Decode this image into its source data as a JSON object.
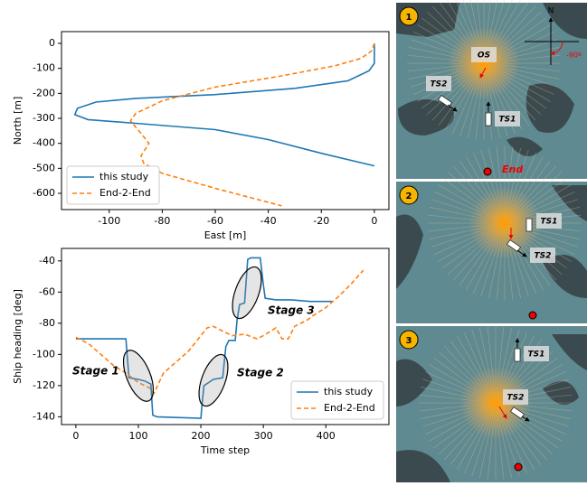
{
  "chart_data": [
    {
      "type": "line",
      "xlabel": "East [m]",
      "ylabel": "North [m]",
      "xlim": [
        -118,
        5.5
      ],
      "ylim": [
        -665,
        47
      ],
      "xticks": [
        -100,
        -80,
        -60,
        -40,
        -20,
        0
      ],
      "yticks": [
        0,
        -100,
        -200,
        -300,
        -400,
        -500,
        -600
      ],
      "legend": "lower left",
      "series": [
        {
          "name": "this study",
          "color": "#1f77b4",
          "dash": false,
          "x": [
            0,
            0,
            -2,
            -10,
            -30,
            -60,
            -90,
            -105,
            -112,
            -113,
            -108,
            -90,
            -60,
            -40,
            -20,
            0
          ],
          "values": [
            0,
            -80,
            -110,
            -150,
            -180,
            -205,
            -220,
            -235,
            -260,
            -285,
            -305,
            -320,
            -345,
            -385,
            -440,
            -490
          ]
        },
        {
          "name": "End-2-End",
          "color": "#ff7f0e",
          "dash": true,
          "x": [
            0,
            -1,
            -5,
            -15,
            -35,
            -60,
            -80,
            -90,
            -92,
            -88,
            -85,
            -88,
            -87,
            -80,
            -60,
            -35
          ],
          "values": [
            0,
            -30,
            -60,
            -90,
            -130,
            -175,
            -230,
            -280,
            -310,
            -360,
            -400,
            -450,
            -480,
            -520,
            -580,
            -650
          ]
        }
      ]
    },
    {
      "type": "line",
      "xlabel": "Time step",
      "ylabel": "Ship heading [deg]",
      "xlim": [
        -23,
        501
      ],
      "ylim": [
        -145,
        -32
      ],
      "xticks": [
        0,
        100,
        200,
        300,
        400
      ],
      "yticks": [
        -40,
        -60,
        -80,
        -100,
        -120,
        -140
      ],
      "legend": "lower right",
      "annotations": [
        "Stage 1",
        "Stage 2",
        "Stage 3"
      ],
      "series": [
        {
          "name": "this study",
          "color": "#1f77b4",
          "dash": false,
          "x": [
            0,
            80,
            82,
            85,
            100,
            110,
            120,
            123,
            130,
            200,
            202,
            205,
            220,
            235,
            240,
            245,
            255,
            258,
            262,
            270,
            275,
            280,
            295,
            300,
            303,
            320,
            345,
            375,
            410
          ],
          "values": [
            -90,
            -90,
            -100,
            -115,
            -116,
            -117,
            -119,
            -139,
            -140,
            -141,
            -132,
            -120,
            -116,
            -115,
            -95,
            -91,
            -91,
            -78,
            -68,
            -67,
            -39,
            -38,
            -38,
            -55,
            -64,
            -65,
            -65,
            -66,
            -66
          ]
        },
        {
          "name": "End-2-End",
          "color": "#ff7f0e",
          "dash": true,
          "x": [
            0,
            20,
            40,
            60,
            80,
            100,
            120,
            125,
            140,
            160,
            180,
            200,
            210,
            220,
            235,
            250,
            270,
            290,
            300,
            320,
            330,
            340,
            350,
            370,
            380,
            400,
            420,
            440,
            460
          ],
          "values": [
            -89,
            -93,
            -100,
            -107,
            -112,
            -118,
            -122,
            -125,
            -112,
            -105,
            -98,
            -88,
            -83,
            -82,
            -85,
            -88,
            -87,
            -90,
            -88,
            -83,
            -90,
            -90,
            -82,
            -78,
            -75,
            -70,
            -63,
            -55,
            -46
          ]
        }
      ]
    }
  ],
  "panels": [
    {
      "number": "1",
      "own_ship": "OS",
      "ts1": "TS1",
      "ts2": "TS2",
      "end": "End",
      "north": "N",
      "angle": "-90º"
    },
    {
      "number": "2",
      "ts1": "TS1",
      "ts2": "TS2"
    },
    {
      "number": "3",
      "ts1": "TS1",
      "ts2": "TS2"
    }
  ]
}
